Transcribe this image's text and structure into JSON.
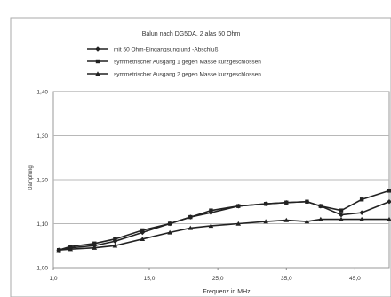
{
  "chart_data": {
    "type": "line",
    "title": "Balun nach DG5DA, 2 alas 50 Ohm",
    "xlabel": "Frequenz in MHz",
    "ylabel": "Dämpfung",
    "x": [
      1.8,
      3.5,
      7,
      10,
      14,
      18,
      21,
      24,
      28,
      32,
      35,
      38,
      40,
      43,
      46,
      50
    ],
    "xticks": [
      "1,0",
      "15,0",
      "25,0",
      "35,0",
      "45,0"
    ],
    "xtick_values": [
      1,
      15,
      25,
      35,
      45
    ],
    "yticks": [
      "1,00",
      "1,10",
      "1,20",
      "1,30",
      "1,40"
    ],
    "ytick_values": [
      1.0,
      1.1,
      1.2,
      1.3,
      1.4
    ],
    "xlim": [
      1,
      50
    ],
    "ylim": [
      1.0,
      1.4
    ],
    "grid": true,
    "legend_position": "top",
    "series": [
      {
        "name": "mit 50 Ohm-Eingangsung und -Abschluß",
        "marker": "diamond",
        "color": "#222222",
        "values": [
          1.04,
          1.045,
          1.05,
          1.06,
          1.08,
          1.1,
          1.115,
          1.125,
          1.14,
          1.145,
          1.148,
          1.15,
          1.14,
          1.12,
          1.125,
          1.15
        ]
      },
      {
        "name": "symmetrischer Ausgang 1 gegen Masse kurzgeschlossen",
        "marker": "square",
        "color": "#222222",
        "values": [
          1.04,
          1.048,
          1.055,
          1.065,
          1.085,
          1.1,
          1.115,
          1.13,
          1.14,
          1.145,
          1.148,
          1.15,
          1.14,
          1.13,
          1.155,
          1.175
        ]
      },
      {
        "name": "symmetrischer Ausgang 2 gegen Masse kurzgeschlossen",
        "marker": "triangle",
        "color": "#222222",
        "values": [
          1.04,
          1.042,
          1.045,
          1.05,
          1.065,
          1.08,
          1.09,
          1.095,
          1.1,
          1.105,
          1.108,
          1.105,
          1.11,
          1.11,
          1.11,
          1.11
        ]
      }
    ]
  }
}
